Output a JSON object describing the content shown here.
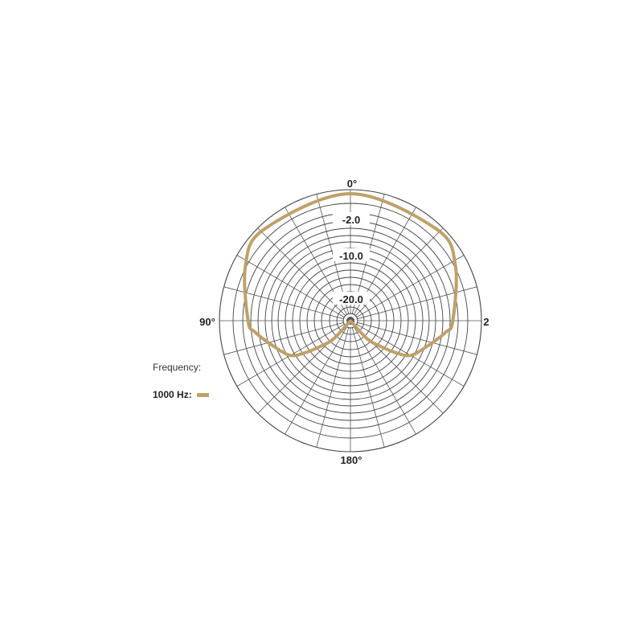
{
  "chart_data": {
    "type": "polar",
    "title": "",
    "angle_labels": {
      "top": "0°",
      "left": "90°",
      "bottom": "180°",
      "right": "2"
    },
    "ring_labels": [
      "-2.0",
      "-10.0",
      "-20.0"
    ],
    "grid": true,
    "angular_grid_step_deg": 15,
    "radial_unit": "dB",
    "rlim": [
      -25,
      0
    ],
    "legend": {
      "title": "Frequency:",
      "position": "left"
    },
    "series": [
      {
        "name": "1000 Hz:",
        "color": "#bfa06a",
        "angles_deg": [
          -145,
          -137,
          -130,
          -125,
          -120,
          -109,
          -97,
          -90,
          -62,
          -43,
          0,
          43,
          62,
          90,
          97,
          109,
          120,
          125,
          130,
          137,
          145
        ],
        "values_db": [
          -25,
          -19,
          -15.5,
          -12,
          -9,
          -6.5,
          -2.9,
          -1.8,
          -0.6,
          -0.1,
          0,
          -0.1,
          -0.6,
          -1.8,
          -2.9,
          -6.5,
          -9,
          -12,
          -15.5,
          -19,
          -25
        ]
      }
    ]
  }
}
